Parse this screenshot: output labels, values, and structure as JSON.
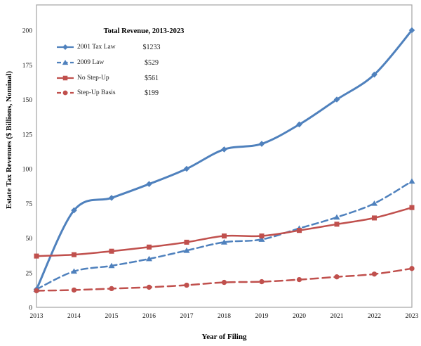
{
  "chart_data": {
    "type": "line",
    "title": "Total Revenue, 2013-2023",
    "xlabel": "Year of Filing",
    "ylabel": "Estate Tax Revenues ($ Billions, Nominal)",
    "categories": [
      "2013",
      "2014",
      "2015",
      "2016",
      "2017",
      "2018",
      "2019",
      "2020",
      "2021",
      "2022",
      "2023"
    ],
    "ylim": [
      0,
      200
    ],
    "y_tick_step": 25,
    "grid": false,
    "legend_position": "inside-upper-left",
    "border_color": "#a3a3a3",
    "text_color": "#1a1a1a",
    "series": [
      {
        "name": "2001 Tax Law",
        "total_label": "$1233",
        "color": "#4F81BD",
        "style": "solid",
        "marker": "diamond",
        "line_width": 3,
        "values": [
          13,
          70,
          79,
          89,
          100,
          114,
          118,
          132,
          150,
          168,
          200
        ]
      },
      {
        "name": "2009 Law",
        "total_label": "$529",
        "color": "#4F81BD",
        "style": "dashed",
        "marker": "triangle",
        "line_width": 2.5,
        "values": [
          13,
          26,
          30,
          35,
          41,
          47,
          49,
          57,
          65,
          75,
          91
        ]
      },
      {
        "name": "No Step-Up",
        "total_label": "$561",
        "color": "#C0504D",
        "style": "solid",
        "marker": "square",
        "line_width": 2.5,
        "values": [
          37,
          38,
          40.5,
          43.5,
          47,
          51.5,
          51.5,
          55.5,
          60,
          64.5,
          72
        ]
      },
      {
        "name": "Step-Up Basis",
        "total_label": "$199",
        "color": "#C0504D",
        "style": "dashed",
        "marker": "circle",
        "line_width": 2.5,
        "values": [
          12,
          12.5,
          13.5,
          14.5,
          16,
          18,
          18.5,
          20,
          22,
          24,
          28
        ]
      }
    ]
  }
}
